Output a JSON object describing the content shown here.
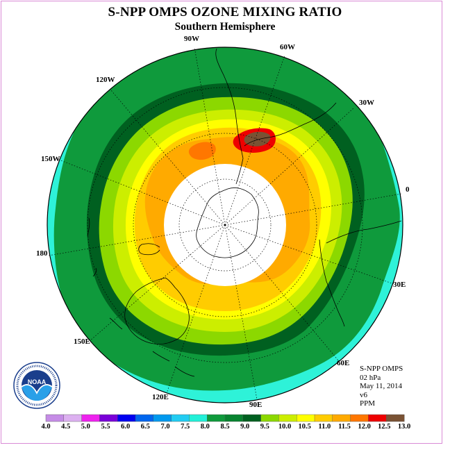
{
  "title": "S-NPP OMPS OZONE MIXING RATIO",
  "subtitle": "Southern Hemisphere",
  "longitude_labels": {
    "w90": "90W",
    "w60": "60W",
    "w120": "120W",
    "w30": "30W",
    "w150": "150W",
    "e0": "0",
    "e180": "180",
    "e30": "30E",
    "e150": "150E",
    "e60": "60E",
    "e120": "120E",
    "e90": "90E"
  },
  "info": {
    "instrument": "S-NPP OMPS",
    "level": "02 hPa",
    "date": "May 11, 2014",
    "version": "v6",
    "units": "PPM"
  },
  "logo_text": "NOAA",
  "colorbar": {
    "labels": [
      "4.0",
      "4.5",
      "5.0",
      "5.5",
      "6.0",
      "6.5",
      "7.0",
      "7.5",
      "8.0",
      "8.5",
      "9.0",
      "9.5",
      "10.0",
      "10.5",
      "11.0",
      "11.5",
      "12.0",
      "12.5",
      "13.0"
    ],
    "colors": [
      "#c58ce6",
      "#dcb0f0",
      "#ee22ee",
      "#7a00d8",
      "#0000f0",
      "#0066ee",
      "#0099ee",
      "#22ccf2",
      "#22f0d8",
      "#0f9a3c",
      "#088430",
      "#006020",
      "#8cd800",
      "#ccee00",
      "#ffff00",
      "#ffcc00",
      "#ffaa00",
      "#ff7700",
      "#ee0000",
      "#7a5234"
    ]
  },
  "map_colors": {
    "cyan": "#2ef2d8",
    "dark_green": "#0f9a3c",
    "darkest_green": "#006020",
    "lime": "#8cd800",
    "yellow_green": "#ccee00",
    "yellow": "#ffff00",
    "gold": "#ffcc00",
    "orange": "#ffaa00",
    "dark_orange": "#ff7700",
    "red": "#ee0000",
    "brown": "#7a5234",
    "polar_night": "#ffffff"
  }
}
